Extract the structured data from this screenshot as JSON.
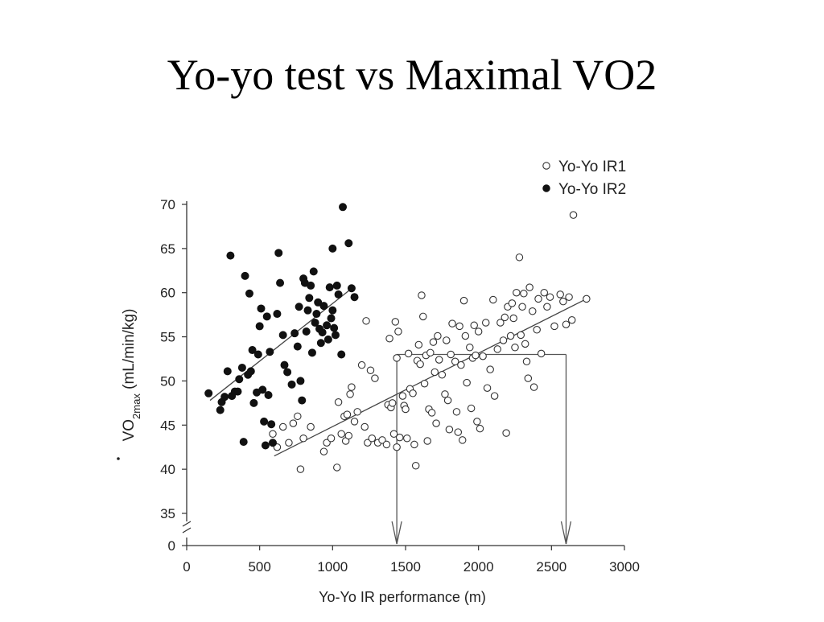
{
  "slide": {
    "title": "Yo-yo test vs Maximal VO2"
  },
  "chart_data": {
    "type": "scatter",
    "xlabel": "Yo-Yo IR performance (m)",
    "ylabel_parts": {
      "main": "VO",
      "subscript": "2max",
      "unit": " (mL/min/kg)"
    },
    "xlim": [
      0,
      3000
    ],
    "ylim_upper": [
      35,
      70
    ],
    "y_axis_break": "0 shown below a break marker at the bottom of the y axis",
    "xticks": [
      0,
      500,
      1000,
      1500,
      2000,
      2500,
      3000
    ],
    "yticks": [
      0,
      35,
      40,
      45,
      50,
      55,
      60,
      65,
      70
    ],
    "grid": false,
    "legend": "top-right",
    "colors": {
      "ir1_fill": "#ffffff",
      "ir1_stroke": "#333333",
      "ir2_fill": "#111111",
      "axis": "#333333"
    },
    "series": [
      {
        "name": "Yo-Yo IR1",
        "marker": "open-circle",
        "points": [
          [
            590,
            44.0
          ],
          [
            620,
            42.5
          ],
          [
            660,
            44.8
          ],
          [
            700,
            43.0
          ],
          [
            730,
            45.2
          ],
          [
            760,
            46.0
          ],
          [
            780,
            40.0
          ],
          [
            800,
            43.5
          ],
          [
            850,
            44.8
          ],
          [
            940,
            42.0
          ],
          [
            960,
            43.0
          ],
          [
            990,
            43.5
          ],
          [
            1030,
            40.2
          ],
          [
            1040,
            47.6
          ],
          [
            1060,
            44.0
          ],
          [
            1080,
            46.0
          ],
          [
            1090,
            43.2
          ],
          [
            1100,
            46.2
          ],
          [
            1110,
            43.8
          ],
          [
            1120,
            48.5
          ],
          [
            1130,
            49.3
          ],
          [
            1150,
            45.4
          ],
          [
            1170,
            46.5
          ],
          [
            1200,
            51.8
          ],
          [
            1220,
            44.8
          ],
          [
            1230,
            56.8
          ],
          [
            1240,
            43.0
          ],
          [
            1260,
            51.2
          ],
          [
            1270,
            43.5
          ],
          [
            1290,
            50.3
          ],
          [
            1310,
            43.0
          ],
          [
            1340,
            43.3
          ],
          [
            1370,
            42.8
          ],
          [
            1380,
            47.3
          ],
          [
            1390,
            54.8
          ],
          [
            1400,
            47.0
          ],
          [
            1410,
            47.5
          ],
          [
            1420,
            44.0
          ],
          [
            1430,
            56.7
          ],
          [
            1440,
            42.5
          ],
          [
            1440,
            52.6
          ],
          [
            1450,
            55.6
          ],
          [
            1460,
            43.6
          ],
          [
            1480,
            48.3
          ],
          [
            1490,
            47.2
          ],
          [
            1500,
            46.8
          ],
          [
            1510,
            43.5
          ],
          [
            1520,
            53.1
          ],
          [
            1530,
            49.1
          ],
          [
            1550,
            48.6
          ],
          [
            1560,
            42.8
          ],
          [
            1570,
            40.4
          ],
          [
            1580,
            52.3
          ],
          [
            1590,
            54.1
          ],
          [
            1600,
            51.9
          ],
          [
            1610,
            59.7
          ],
          [
            1620,
            57.3
          ],
          [
            1630,
            49.7
          ],
          [
            1640,
            52.9
          ],
          [
            1650,
            43.2
          ],
          [
            1660,
            46.8
          ],
          [
            1670,
            53.2
          ],
          [
            1680,
            46.4
          ],
          [
            1690,
            54.4
          ],
          [
            1700,
            51.0
          ],
          [
            1710,
            45.2
          ],
          [
            1720,
            55.1
          ],
          [
            1730,
            52.4
          ],
          [
            1750,
            50.7
          ],
          [
            1770,
            48.5
          ],
          [
            1780,
            54.6
          ],
          [
            1790,
            47.8
          ],
          [
            1800,
            44.5
          ],
          [
            1810,
            53.0
          ],
          [
            1820,
            56.5
          ],
          [
            1840,
            52.2
          ],
          [
            1850,
            46.5
          ],
          [
            1860,
            44.2
          ],
          [
            1870,
            56.2
          ],
          [
            1880,
            51.8
          ],
          [
            1890,
            43.3
          ],
          [
            1900,
            59.1
          ],
          [
            1910,
            55.1
          ],
          [
            1920,
            49.8
          ],
          [
            1940,
            53.8
          ],
          [
            1950,
            46.9
          ],
          [
            1960,
            52.6
          ],
          [
            1970,
            56.3
          ],
          [
            1980,
            52.9
          ],
          [
            1990,
            45.4
          ],
          [
            2000,
            55.6
          ],
          [
            2010,
            44.6
          ],
          [
            2030,
            52.8
          ],
          [
            2050,
            56.6
          ],
          [
            2060,
            49.2
          ],
          [
            2080,
            51.3
          ],
          [
            2100,
            59.2
          ],
          [
            2110,
            48.3
          ],
          [
            2130,
            53.6
          ],
          [
            2150,
            56.6
          ],
          [
            2170,
            54.6
          ],
          [
            2180,
            57.2
          ],
          [
            2190,
            44.1
          ],
          [
            2200,
            58.4
          ],
          [
            2220,
            55.1
          ],
          [
            2230,
            58.8
          ],
          [
            2240,
            57.1
          ],
          [
            2250,
            53.8
          ],
          [
            2260,
            60.0
          ],
          [
            2280,
            64.0
          ],
          [
            2290,
            55.2
          ],
          [
            2300,
            58.4
          ],
          [
            2310,
            59.9
          ],
          [
            2320,
            54.2
          ],
          [
            2330,
            52.2
          ],
          [
            2340,
            50.3
          ],
          [
            2350,
            60.6
          ],
          [
            2370,
            57.9
          ],
          [
            2380,
            49.3
          ],
          [
            2400,
            55.8
          ],
          [
            2410,
            59.3
          ],
          [
            2430,
            53.1
          ],
          [
            2450,
            60.0
          ],
          [
            2470,
            58.4
          ],
          [
            2490,
            59.5
          ],
          [
            2520,
            56.2
          ],
          [
            2560,
            59.8
          ],
          [
            2580,
            59.0
          ],
          [
            2600,
            56.4
          ],
          [
            2620,
            59.5
          ],
          [
            2640,
            56.9
          ],
          [
            2650,
            68.8
          ],
          [
            2740,
            59.3
          ]
        ],
        "fit_line": [
          [
            600,
            41.5
          ],
          [
            2740,
            59.3
          ]
        ]
      },
      {
        "name": "Yo-Yo IR2",
        "marker": "filled-circle",
        "points": [
          [
            150,
            48.6
          ],
          [
            230,
            46.7
          ],
          [
            240,
            47.6
          ],
          [
            260,
            48.2
          ],
          [
            280,
            51.1
          ],
          [
            300,
            64.2
          ],
          [
            310,
            48.3
          ],
          [
            330,
            48.8
          ],
          [
            350,
            48.8
          ],
          [
            360,
            50.2
          ],
          [
            380,
            51.5
          ],
          [
            390,
            43.1
          ],
          [
            400,
            61.9
          ],
          [
            420,
            50.7
          ],
          [
            430,
            59.9
          ],
          [
            440,
            51.1
          ],
          [
            450,
            53.5
          ],
          [
            460,
            47.5
          ],
          [
            480,
            48.7
          ],
          [
            490,
            53.0
          ],
          [
            500,
            56.2
          ],
          [
            510,
            58.2
          ],
          [
            520,
            49.0
          ],
          [
            530,
            45.4
          ],
          [
            540,
            42.7
          ],
          [
            550,
            57.3
          ],
          [
            560,
            48.4
          ],
          [
            570,
            53.3
          ],
          [
            580,
            45.1
          ],
          [
            590,
            43.0
          ],
          [
            620,
            57.6
          ],
          [
            630,
            64.5
          ],
          [
            640,
            61.1
          ],
          [
            660,
            55.2
          ],
          [
            670,
            51.8
          ],
          [
            690,
            51.0
          ],
          [
            720,
            49.6
          ],
          [
            740,
            55.4
          ],
          [
            760,
            53.9
          ],
          [
            770,
            58.4
          ],
          [
            780,
            50.0
          ],
          [
            790,
            47.8
          ],
          [
            800,
            61.6
          ],
          [
            810,
            61.1
          ],
          [
            820,
            55.6
          ],
          [
            830,
            58.0
          ],
          [
            840,
            59.4
          ],
          [
            850,
            60.8
          ],
          [
            860,
            53.2
          ],
          [
            870,
            62.4
          ],
          [
            880,
            56.6
          ],
          [
            890,
            57.6
          ],
          [
            900,
            58.9
          ],
          [
            910,
            55.9
          ],
          [
            920,
            54.3
          ],
          [
            930,
            55.5
          ],
          [
            940,
            58.5
          ],
          [
            960,
            56.3
          ],
          [
            970,
            54.7
          ],
          [
            980,
            60.6
          ],
          [
            990,
            57.1
          ],
          [
            1000,
            58.0
          ],
          [
            1010,
            56.0
          ],
          [
            1020,
            55.2
          ],
          [
            1030,
            60.8
          ],
          [
            1040,
            59.8
          ],
          [
            1060,
            53.0
          ],
          [
            1070,
            69.7
          ],
          [
            1110,
            65.6
          ],
          [
            1130,
            60.5
          ],
          [
            1150,
            59.5
          ],
          [
            1000,
            65.0
          ]
        ],
        "fit_line": [
          [
            160,
            47.8
          ],
          [
            1140,
            60.6
          ]
        ]
      }
    ],
    "annotations": {
      "horizontal_segment": {
        "y": 53.0,
        "x_from": 1440,
        "x_to": 2600
      },
      "arrows_down_to_x_axis": [
        1440,
        2600
      ]
    }
  }
}
